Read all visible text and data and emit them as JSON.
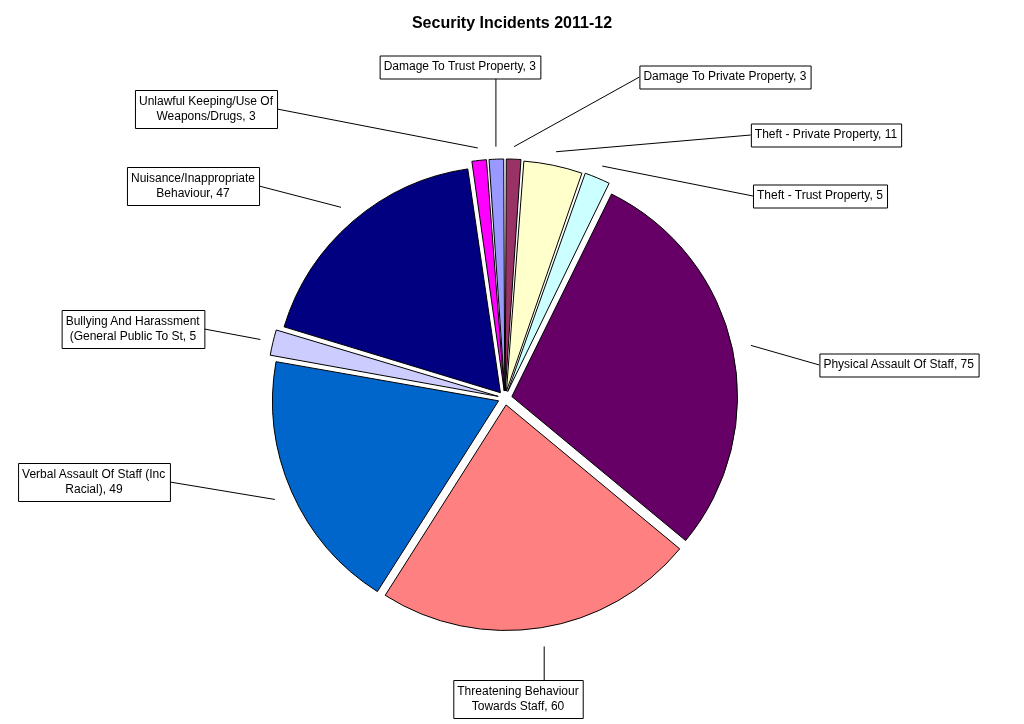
{
  "chart_data": {
    "type": "pie",
    "title": "Security Incidents 2011-12",
    "categories": [
      "Damage To Private Property, 3",
      "Theft - Private Property, 11",
      "Theft - Trust Property, 5",
      "Physical Assault Of Staff, 75",
      "Threatening Behaviour Towards Staff, 60",
      "Verbal Assault Of Staff (Inc Racial), 49",
      "Bullying And Harassment (General Public To St, 5",
      "Nuisance/Inappropriate Behaviour, 47",
      "Unlawful Keeping/Use Of Weapons/Drugs, 3",
      "Damage To Trust Property, 3"
    ],
    "values": [
      3,
      11,
      5,
      75,
      60,
      49,
      5,
      47,
      3,
      3
    ],
    "colors": [
      "#993366",
      "#ffffcc",
      "#ccffff",
      "#660066",
      "#ff8080",
      "#0066cc",
      "#ccccff",
      "#000080",
      "#ff00ff",
      "#9999ff"
    ]
  }
}
